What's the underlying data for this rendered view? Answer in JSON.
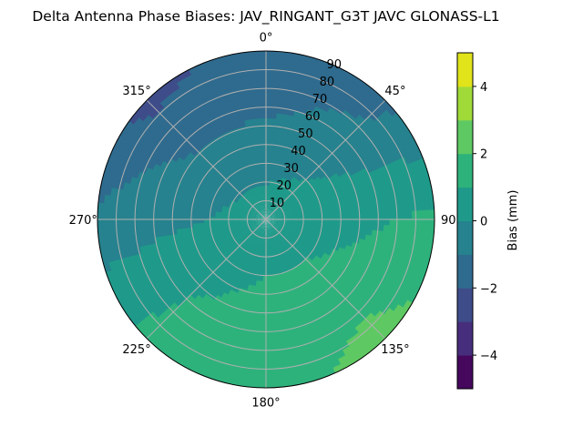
{
  "chart_data": {
    "type": "heatmap",
    "subtype": "polar-filled-contour",
    "title": "Delta Antenna Phase Biases: JAV_RINGANT_G3T JAVC GLONASS-L1",
    "theta_direction": "clockwise",
    "theta_zero": "north",
    "theta_ticks": [
      "0°",
      "45°",
      "90",
      "135°",
      "180°",
      "225°",
      "270°",
      "315°"
    ],
    "r_ticks": [
      "10",
      "20",
      "30",
      "40",
      "50",
      "60",
      "70",
      "80",
      "90"
    ],
    "r_range": [
      0,
      90
    ],
    "grid": true,
    "grid_color": "#b0b0b0",
    "field": {
      "azimuth_deg": [
        0,
        45,
        90,
        135,
        180,
        225,
        270,
        315,
        360
      ],
      "zenith_deg": [
        0,
        30,
        60,
        90
      ],
      "bias_mm": [
        [
          0.5,
          -0.3,
          -1.2,
          -1.6
        ],
        [
          0.5,
          0.0,
          -0.7,
          -1.3
        ],
        [
          0.5,
          0.6,
          0.9,
          1.2
        ],
        [
          0.5,
          1.0,
          1.7,
          2.4
        ],
        [
          0.5,
          1.0,
          1.5,
          1.6
        ],
        [
          0.5,
          0.7,
          1.0,
          1.3
        ],
        [
          0.5,
          0.0,
          -0.3,
          -0.8
        ],
        [
          0.5,
          -0.4,
          -1.3,
          -2.3
        ],
        [
          0.5,
          -0.3,
          -1.2,
          -1.6
        ]
      ]
    },
    "colorbar": {
      "label": "Bias (mm)",
      "levels": [
        -5,
        -4,
        -3,
        -2,
        -1,
        0,
        1,
        2,
        3,
        4,
        5
      ],
      "tick_values": [
        -4,
        -2,
        0,
        2,
        4
      ],
      "tick_labels": [
        "−4",
        "−2",
        "0",
        "2",
        "4"
      ],
      "colors": [
        "#45085d",
        "#472e7c",
        "#3e4c8a",
        "#2f6b8e",
        "#26828e",
        "#1f9a8a",
        "#2eb27c",
        "#5ec962",
        "#a0da39",
        "#e1e31b"
      ]
    }
  }
}
